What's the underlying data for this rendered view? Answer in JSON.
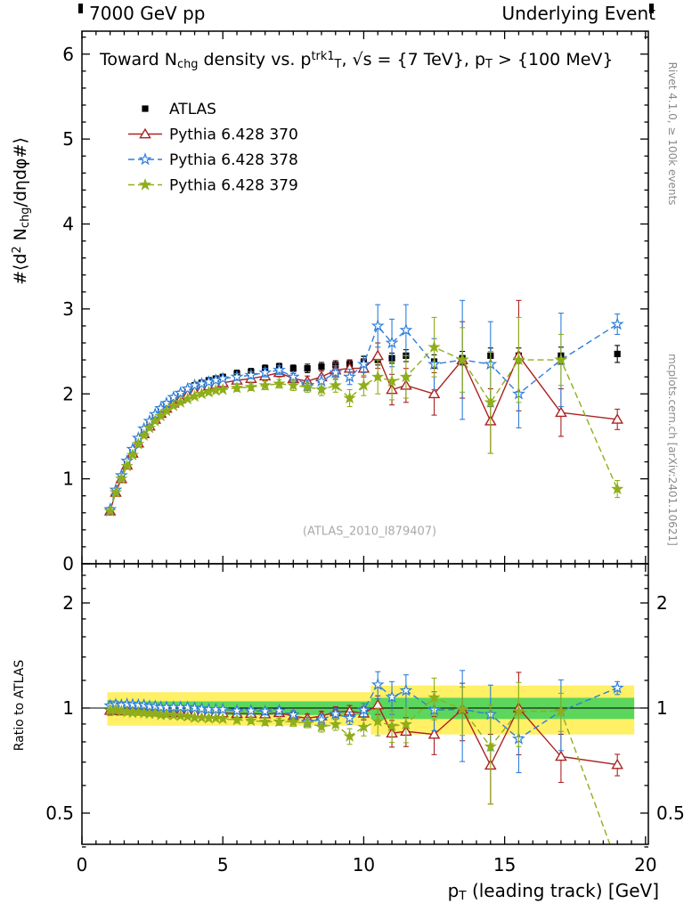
{
  "header": {
    "left": "7000 GeV pp",
    "right": "Underlying Event"
  },
  "labels": {
    "title_tokens": [
      {
        "t": "Toward N"
      },
      {
        "t": "chg",
        "s": "sub"
      },
      {
        "t": " density vs. p"
      },
      {
        "t": "trk1",
        "s": "sup"
      },
      {
        "t": "T",
        "s": "sub"
      },
      {
        "t": ", √s = {7 TeV}, p"
      },
      {
        "t": "T",
        "s": "sub"
      },
      {
        "t": " > {100 MeV}"
      }
    ],
    "ylabel_main_tokens": [
      {
        "t": "#⟨d"
      },
      {
        "t": "2",
        "s": "sup"
      },
      {
        "t": " N"
      },
      {
        "t": "chg",
        "s": "sub"
      },
      {
        "t": "/dηdφ#⟩"
      }
    ],
    "ylabel_ratio": "Ratio to ATLAS",
    "xlabel_tokens": [
      {
        "t": "p"
      },
      {
        "t": "T",
        "s": "sub"
      },
      {
        "t": " (leading track) [GeV]"
      }
    ],
    "watermark": "(ATLAS_2010_I879407)",
    "side_top": "Rivet 4.1.0, ≥ 100k events",
    "side_bottom": "mcplots.cern.ch [arXiv:2401.10621]"
  },
  "chart_data": {
    "type": "line",
    "title": "Toward N_chg density vs. p_T^trk1, √s = {7 TeV}, p_T > {100 MeV}",
    "xlabel": "p_T (leading track) [GeV]",
    "ylabel": "#⟨d2 N_chg/dηdφ#⟩",
    "ylabel_ratio": "Ratio to ATLAS",
    "legend_position": "top-left",
    "grid": false,
    "xlim": [
      0,
      20.1
    ],
    "ylim": [
      0,
      6.27
    ],
    "x_major_ticks": [
      0,
      5,
      10,
      15,
      20
    ],
    "y_major_ticks": [
      0,
      1,
      2,
      3,
      4,
      5,
      6
    ],
    "x": [
      1.0,
      1.2,
      1.4,
      1.6,
      1.8,
      2.0,
      2.2,
      2.4,
      2.6,
      2.8,
      3.0,
      3.25,
      3.5,
      3.75,
      4.0,
      4.25,
      4.5,
      4.75,
      5.0,
      5.5,
      6.0,
      6.5,
      7.0,
      7.5,
      8.0,
      8.5,
      9.0,
      9.5,
      10.0,
      10.5,
      11.0,
      11.5,
      12.5,
      13.5,
      14.5,
      15.5,
      17.0,
      19.0
    ],
    "series": [
      {
        "id": "atlas",
        "name": "ATLAS",
        "color": "#000000",
        "marker": "square",
        "line": "none",
        "values": [
          0.63,
          0.85,
          1.02,
          1.18,
          1.32,
          1.45,
          1.56,
          1.66,
          1.74,
          1.82,
          1.88,
          1.95,
          2.0,
          2.05,
          2.1,
          2.13,
          2.16,
          2.18,
          2.2,
          2.24,
          2.26,
          2.3,
          2.32,
          2.3,
          2.3,
          2.32,
          2.34,
          2.35,
          2.38,
          2.4,
          2.42,
          2.45,
          2.38,
          2.42,
          2.45,
          2.45,
          2.45,
          2.47
        ],
        "errors": [
          0.02,
          0.02,
          0.02,
          0.02,
          0.02,
          0.02,
          0.02,
          0.02,
          0.02,
          0.02,
          0.03,
          0.03,
          0.03,
          0.03,
          0.03,
          0.03,
          0.03,
          0.03,
          0.03,
          0.04,
          0.04,
          0.04,
          0.04,
          0.04,
          0.05,
          0.05,
          0.05,
          0.05,
          0.06,
          0.06,
          0.06,
          0.07,
          0.08,
          0.08,
          0.09,
          0.09,
          0.1,
          0.1
        ]
      },
      {
        "id": "pythia-370",
        "name": "Pythia 6.428 370",
        "color": "#aa2222",
        "marker": "triangle-open",
        "line": "solid",
        "values": [
          0.62,
          0.84,
          1.0,
          1.16,
          1.3,
          1.42,
          1.53,
          1.62,
          1.7,
          1.77,
          1.83,
          1.89,
          1.94,
          1.99,
          2.03,
          2.06,
          2.09,
          2.11,
          2.13,
          2.16,
          2.18,
          2.21,
          2.25,
          2.18,
          2.15,
          2.2,
          2.28,
          2.3,
          2.3,
          2.45,
          2.05,
          2.1,
          2.0,
          2.4,
          1.68,
          2.45,
          1.78,
          1.7
        ],
        "errors": [
          0.02,
          0.02,
          0.02,
          0.02,
          0.02,
          0.02,
          0.02,
          0.02,
          0.02,
          0.02,
          0.02,
          0.02,
          0.02,
          0.02,
          0.02,
          0.02,
          0.02,
          0.02,
          0.02,
          0.04,
          0.04,
          0.05,
          0.05,
          0.06,
          0.06,
          0.07,
          0.08,
          0.09,
          0.1,
          0.15,
          0.18,
          0.2,
          0.25,
          0.45,
          0.38,
          0.65,
          0.28,
          0.12
        ]
      },
      {
        "id": "pythia-378",
        "name": "Pythia 6.428 378",
        "color": "#2f7ed8",
        "marker": "star-open",
        "line": "dashed",
        "values": [
          0.64,
          0.87,
          1.04,
          1.21,
          1.35,
          1.48,
          1.59,
          1.68,
          1.76,
          1.83,
          1.89,
          1.96,
          2.01,
          2.06,
          2.1,
          2.12,
          2.14,
          2.16,
          2.18,
          2.2,
          2.22,
          2.25,
          2.28,
          2.2,
          2.1,
          2.15,
          2.25,
          2.2,
          2.35,
          2.8,
          2.6,
          2.75,
          2.35,
          2.4,
          2.35,
          2.0,
          2.4,
          2.82
        ],
        "errors": [
          0.02,
          0.02,
          0.02,
          0.02,
          0.02,
          0.02,
          0.02,
          0.02,
          0.02,
          0.02,
          0.02,
          0.02,
          0.02,
          0.02,
          0.02,
          0.02,
          0.02,
          0.02,
          0.02,
          0.04,
          0.04,
          0.05,
          0.05,
          0.06,
          0.06,
          0.07,
          0.08,
          0.09,
          0.1,
          0.25,
          0.28,
          0.3,
          0.3,
          0.7,
          0.5,
          0.4,
          0.55,
          0.12
        ]
      },
      {
        "id": "pythia-379",
        "name": "Pythia 6.428 379",
        "color": "#8fae1a",
        "marker": "star-filled",
        "line": "dashed",
        "values": [
          0.62,
          0.84,
          1.0,
          1.15,
          1.28,
          1.41,
          1.51,
          1.6,
          1.68,
          1.74,
          1.8,
          1.86,
          1.9,
          1.94,
          1.97,
          2.0,
          2.02,
          2.04,
          2.05,
          2.07,
          2.08,
          2.1,
          2.12,
          2.1,
          2.08,
          2.05,
          2.1,
          1.95,
          2.1,
          2.2,
          2.15,
          2.2,
          2.55,
          2.4,
          1.9,
          2.4,
          2.4,
          0.88
        ],
        "errors": [
          0.02,
          0.02,
          0.02,
          0.02,
          0.02,
          0.02,
          0.02,
          0.02,
          0.02,
          0.02,
          0.02,
          0.02,
          0.02,
          0.02,
          0.02,
          0.02,
          0.02,
          0.02,
          0.02,
          0.04,
          0.04,
          0.05,
          0.05,
          0.06,
          0.06,
          0.07,
          0.08,
          0.1,
          0.12,
          0.2,
          0.22,
          0.25,
          0.35,
          0.38,
          0.6,
          0.5,
          0.3,
          0.1
        ]
      }
    ],
    "ratio": {
      "scale": "log",
      "lim": [
        0.407,
        2.59
      ],
      "ticks": [
        0.5,
        1,
        2
      ],
      "minor_ticks": [
        0.4,
        0.6,
        0.7,
        0.8,
        0.9,
        1.2,
        1.4,
        1.6,
        1.8,
        2.2,
        2.4
      ],
      "reference_line": 1,
      "bands": [
        {
          "x0": 0.9,
          "x1": 10.25,
          "lo": 0.89,
          "hi": 1.11,
          "color": "#fff066"
        },
        {
          "x0": 10.25,
          "x1": 19.6,
          "lo": 0.84,
          "hi": 1.16,
          "color": "#fff066"
        },
        {
          "x0": 0.9,
          "x1": 10.25,
          "lo": 0.955,
          "hi": 1.045,
          "color": "#5cd65c"
        },
        {
          "x0": 10.25,
          "x1": 19.6,
          "lo": 0.93,
          "hi": 1.07,
          "color": "#5cd65c"
        }
      ]
    }
  }
}
